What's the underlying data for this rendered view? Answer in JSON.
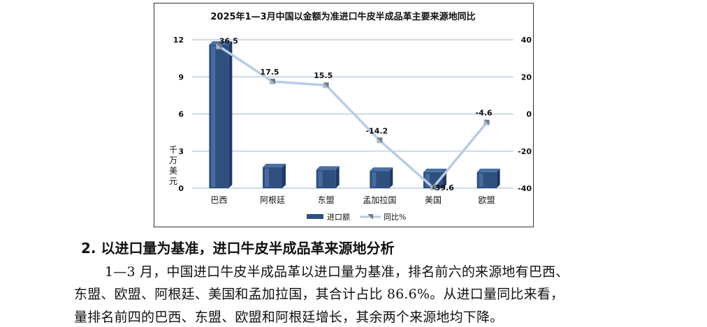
{
  "chart_data": {
    "type": "bar+line",
    "title": "2025年1—3月中国以金额为准进口牛皮半成品革主要来源地同比",
    "ylabel": "千万美元",
    "categories": [
      "巴西",
      "阿根廷",
      "东盟",
      "孟加拉国",
      "美国",
      "欧盟"
    ],
    "left_axis": {
      "ticks": [
        "0",
        "3",
        "6",
        "9",
        "12"
      ],
      "ylim": [
        0,
        12
      ]
    },
    "right_axis": {
      "ticks": [
        "-40",
        "-20",
        "0",
        "20",
        "40"
      ],
      "ylim": [
        -40,
        40
      ]
    },
    "series": [
      {
        "name": "进口额",
        "type": "bar",
        "axis": "left",
        "values": [
          11.6,
          1.7,
          1.5,
          1.4,
          1.3,
          1.3
        ],
        "color": "#2f4f7f"
      },
      {
        "name": "同比%",
        "type": "line",
        "axis": "right",
        "values": [
          36.5,
          17.5,
          15.5,
          -14.2,
          -39.6,
          -4.6
        ],
        "labels": [
          "36.5",
          "17.5",
          "15.5",
          "-14.2",
          "-39.6",
          "-4.6"
        ],
        "color": "#b8cce4"
      }
    ],
    "grid": true,
    "legend": "bottom"
  },
  "text": {
    "heading": "2. 以进口量为基准，进口牛皮半成品革来源地分析",
    "line1": "1—3 月，中国进口牛皮半成品革以进口量为基准，排名前六的来源地有巴西、",
    "line2": "东盟、欧盟、阿根廷、美国和孟加拉国，其合计占比 86.6%。从进口量同比来看，",
    "line3": "量排名前四的巴西、东盟、欧盟和阿根廷增长，其余两个来源地均下降。"
  }
}
